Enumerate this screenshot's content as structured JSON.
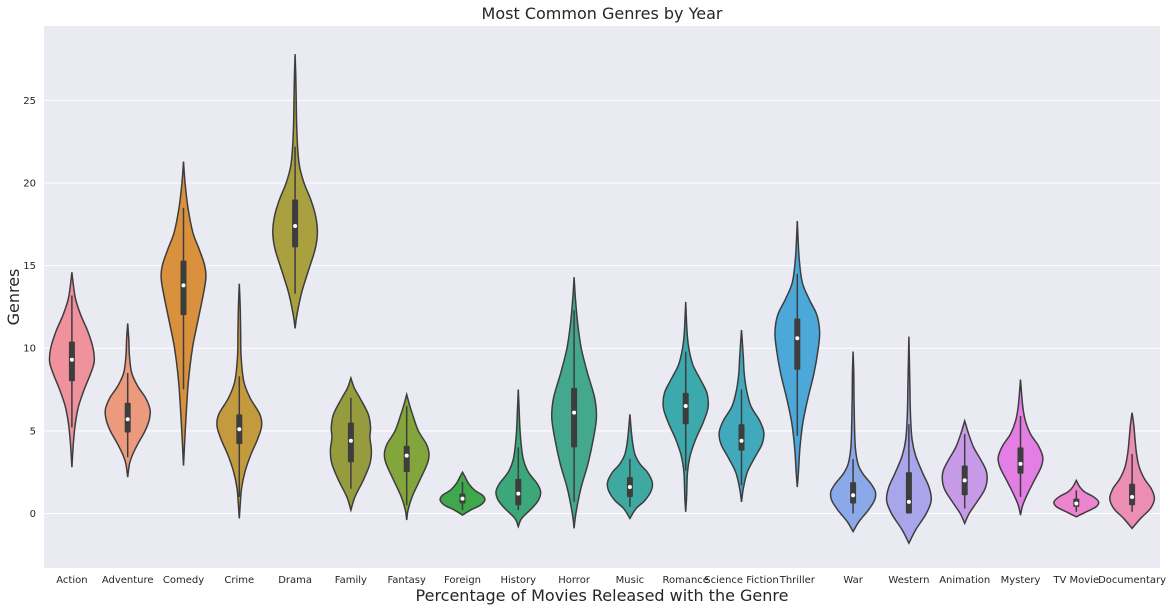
{
  "chart_data": {
    "type": "violin",
    "title": "Most Common Genres by Year",
    "xlabel": "Percentage of Movies Released with the Genre",
    "ylabel": "Genres",
    "ylim": [
      -3.3,
      29.5
    ],
    "yticks": [
      0,
      5,
      10,
      15,
      20,
      25
    ],
    "grid": true,
    "categories": [
      "Action",
      "Adventure",
      "Comedy",
      "Crime",
      "Drama",
      "Family",
      "Fantasy",
      "Foreign",
      "History",
      "Horror",
      "Music",
      "Romance",
      "Science Fiction",
      "Thriller",
      "War",
      "Western",
      "Animation",
      "Mystery",
      "TV Movie",
      "Documentary"
    ],
    "colors": [
      "#f0929d",
      "#eb9a7e",
      "#d9913d",
      "#c49a3f",
      "#a9a040",
      "#969c3d",
      "#82a63b",
      "#3fa84d",
      "#3ca779",
      "#44a88f",
      "#3ea9a0",
      "#3ca9ad",
      "#40aabc",
      "#4ba8d9",
      "#8ba8e8",
      "#a9a5ea",
      "#c79ae8",
      "#e37ee4",
      "#ec84ce",
      "#ec8db3"
    ],
    "violins": [
      {
        "min": 2.8,
        "max": 14.6,
        "q1": 8.0,
        "q3": 10.4,
        "median": 9.3,
        "wlo": 5.2,
        "whi": 13.2,
        "profile": [
          [
            2.8,
            0
          ],
          [
            3.5,
            0.03
          ],
          [
            4.5,
            0.08
          ],
          [
            5.5,
            0.16
          ],
          [
            6.5,
            0.3
          ],
          [
            7.5,
            0.55
          ],
          [
            8.5,
            0.85
          ],
          [
            9.2,
            1.0
          ],
          [
            10,
            0.95
          ],
          [
            11,
            0.72
          ],
          [
            12,
            0.4
          ],
          [
            13,
            0.16
          ],
          [
            14,
            0.05
          ],
          [
            14.6,
            0
          ]
        ]
      },
      {
        "min": 2.2,
        "max": 11.5,
        "q1": 4.9,
        "q3": 6.7,
        "median": 5.7,
        "wlo": 3.4,
        "whi": 8.5,
        "profile": [
          [
            2.2,
            0
          ],
          [
            3,
            0.08
          ],
          [
            3.5,
            0.2
          ],
          [
            4.2,
            0.45
          ],
          [
            5,
            0.78
          ],
          [
            5.7,
            0.97
          ],
          [
            6.3,
            1.0
          ],
          [
            7,
            0.8
          ],
          [
            7.7,
            0.45
          ],
          [
            8.5,
            0.18
          ],
          [
            9.5,
            0.08
          ],
          [
            10.5,
            0.05
          ],
          [
            11.5,
            0
          ]
        ]
      },
      {
        "min": 2.9,
        "max": 21.3,
        "q1": 12.0,
        "q3": 15.3,
        "median": 13.8,
        "wlo": 7.5,
        "whi": 18.5,
        "profile": [
          [
            2.9,
            0
          ],
          [
            4,
            0.04
          ],
          [
            6,
            0.12
          ],
          [
            8,
            0.22
          ],
          [
            10,
            0.4
          ],
          [
            11.5,
            0.62
          ],
          [
            13,
            0.85
          ],
          [
            14.2,
            1.0
          ],
          [
            15,
            0.95
          ],
          [
            16,
            0.7
          ],
          [
            17,
            0.42
          ],
          [
            18.5,
            0.2
          ],
          [
            20,
            0.07
          ],
          [
            21.3,
            0
          ]
        ]
      },
      {
        "min": -0.3,
        "max": 13.9,
        "q1": 4.2,
        "q3": 6.0,
        "median": 5.1,
        "wlo": 1.0,
        "whi": 8.3,
        "profile": [
          [
            -0.3,
            0
          ],
          [
            0.5,
            0.04
          ],
          [
            1.5,
            0.1
          ],
          [
            2.5,
            0.25
          ],
          [
            3.5,
            0.5
          ],
          [
            4.5,
            0.82
          ],
          [
            5.3,
            1.0
          ],
          [
            6,
            0.92
          ],
          [
            7,
            0.48
          ],
          [
            8,
            0.2
          ],
          [
            9.5,
            0.08
          ],
          [
            11,
            0.06
          ],
          [
            12.5,
            0.04
          ],
          [
            13.9,
            0
          ]
        ]
      },
      {
        "min": 11.2,
        "max": 27.8,
        "q1": 16.1,
        "q3": 19.0,
        "median": 17.4,
        "wlo": 13.3,
        "whi": 22.2,
        "profile": [
          [
            11.2,
            0
          ],
          [
            12,
            0.08
          ],
          [
            13.3,
            0.28
          ],
          [
            14.5,
            0.55
          ],
          [
            16,
            0.9
          ],
          [
            17,
            1.0
          ],
          [
            18,
            0.92
          ],
          [
            19,
            0.7
          ],
          [
            20,
            0.4
          ],
          [
            21,
            0.2
          ],
          [
            22,
            0.12
          ],
          [
            23.5,
            0.07
          ],
          [
            25,
            0.05
          ],
          [
            26.5,
            0.03
          ],
          [
            27.8,
            0
          ]
        ]
      },
      {
        "min": 0.2,
        "max": 8.2,
        "q1": 3.1,
        "q3": 5.5,
        "median": 4.4,
        "wlo": 1.5,
        "whi": 7.0,
        "profile": [
          [
            0.2,
            0
          ],
          [
            1,
            0.18
          ],
          [
            2,
            0.55
          ],
          [
            3,
            0.85
          ],
          [
            3.8,
            0.92
          ],
          [
            4.6,
            0.85
          ],
          [
            5.2,
            0.88
          ],
          [
            6,
            0.78
          ],
          [
            7,
            0.4
          ],
          [
            7.6,
            0.15
          ],
          [
            8.2,
            0
          ]
        ]
      },
      {
        "min": -0.4,
        "max": 7.2,
        "q1": 2.5,
        "q3": 4.1,
        "median": 3.5,
        "wlo": 0.5,
        "whi": 6.5,
        "profile": [
          [
            -0.4,
            0
          ],
          [
            0.2,
            0.06
          ],
          [
            1,
            0.24
          ],
          [
            2,
            0.58
          ],
          [
            3,
            0.92
          ],
          [
            3.6,
            1.0
          ],
          [
            4.2,
            0.88
          ],
          [
            5,
            0.52
          ],
          [
            6,
            0.26
          ],
          [
            6.6,
            0.12
          ],
          [
            7.2,
            0
          ]
        ]
      },
      {
        "min": -0.1,
        "max": 2.5,
        "q1": 0.6,
        "q3": 1.2,
        "median": 0.9,
        "wlo": 0.2,
        "whi": 1.9,
        "profile": [
          [
            -0.1,
            0
          ],
          [
            0.2,
            0.35
          ],
          [
            0.5,
            0.8
          ],
          [
            0.8,
            1.0
          ],
          [
            1.1,
            0.9
          ],
          [
            1.4,
            0.55
          ],
          [
            1.8,
            0.28
          ],
          [
            2.2,
            0.12
          ],
          [
            2.5,
            0
          ]
        ]
      },
      {
        "min": -0.8,
        "max": 7.5,
        "q1": 0.5,
        "q3": 2.1,
        "median": 1.2,
        "wlo": 0.2,
        "whi": 4.0,
        "profile": [
          [
            -0.8,
            0
          ],
          [
            -0.3,
            0.15
          ],
          [
            0.3,
            0.6
          ],
          [
            0.8,
            0.9
          ],
          [
            1.3,
            1.0
          ],
          [
            1.8,
            0.85
          ],
          [
            2.5,
            0.45
          ],
          [
            3.3,
            0.22
          ],
          [
            4.3,
            0.12
          ],
          [
            5.2,
            0.07
          ],
          [
            6.2,
            0.04
          ],
          [
            7.5,
            0
          ]
        ]
      },
      {
        "min": -0.9,
        "max": 14.3,
        "q1": 4.0,
        "q3": 7.6,
        "median": 6.1,
        "wlo": 0.7,
        "whi": 12.3,
        "profile": [
          [
            -0.9,
            0
          ],
          [
            0,
            0.08
          ],
          [
            1.5,
            0.3
          ],
          [
            3,
            0.62
          ],
          [
            4.5,
            0.86
          ],
          [
            5.8,
            1.0
          ],
          [
            7,
            0.92
          ],
          [
            8.5,
            0.6
          ],
          [
            10,
            0.32
          ],
          [
            11.5,
            0.16
          ],
          [
            13,
            0.06
          ],
          [
            14.3,
            0
          ]
        ]
      },
      {
        "min": -0.3,
        "max": 6.0,
        "q1": 1.0,
        "q3": 2.2,
        "median": 1.6,
        "wlo": 0.4,
        "whi": 3.3,
        "profile": [
          [
            -0.3,
            0
          ],
          [
            0.3,
            0.28
          ],
          [
            0.8,
            0.68
          ],
          [
            1.4,
            0.96
          ],
          [
            1.9,
            1.0
          ],
          [
            2.5,
            0.78
          ],
          [
            3,
            0.45
          ],
          [
            3.6,
            0.22
          ],
          [
            4.5,
            0.1
          ],
          [
            6,
            0
          ]
        ]
      },
      {
        "min": 0.1,
        "max": 12.8,
        "q1": 5.4,
        "q3": 7.3,
        "median": 6.5,
        "wlo": 2.6,
        "whi": 9.8,
        "profile": [
          [
            0.1,
            0
          ],
          [
            1,
            0.04
          ],
          [
            2.5,
            0.08
          ],
          [
            3.5,
            0.2
          ],
          [
            4.5,
            0.45
          ],
          [
            5.5,
            0.78
          ],
          [
            6.4,
            1.0
          ],
          [
            7.3,
            0.95
          ],
          [
            8.2,
            0.62
          ],
          [
            9,
            0.32
          ],
          [
            10,
            0.14
          ],
          [
            11,
            0.06
          ],
          [
            12.8,
            0
          ]
        ]
      },
      {
        "min": 0.7,
        "max": 11.1,
        "q1": 3.8,
        "q3": 5.4,
        "median": 4.4,
        "wlo": 1.7,
        "whi": 7.5,
        "profile": [
          [
            0.7,
            0
          ],
          [
            1.5,
            0.08
          ],
          [
            2.5,
            0.26
          ],
          [
            3.4,
            0.6
          ],
          [
            4.2,
            0.92
          ],
          [
            4.9,
            1.0
          ],
          [
            5.6,
            0.82
          ],
          [
            6.5,
            0.42
          ],
          [
            7.5,
            0.22
          ],
          [
            8.5,
            0.12
          ],
          [
            9.5,
            0.08
          ],
          [
            11.1,
            0
          ]
        ]
      },
      {
        "min": 1.6,
        "max": 17.7,
        "q1": 8.7,
        "q3": 11.8,
        "median": 10.6,
        "wlo": 4.7,
        "whi": 14.5,
        "profile": [
          [
            1.6,
            0
          ],
          [
            2.5,
            0.05
          ],
          [
            4,
            0.12
          ],
          [
            5.5,
            0.25
          ],
          [
            7,
            0.48
          ],
          [
            8.5,
            0.75
          ],
          [
            10,
            0.94
          ],
          [
            11,
            1.0
          ],
          [
            12,
            0.88
          ],
          [
            13,
            0.52
          ],
          [
            14,
            0.22
          ],
          [
            15.5,
            0.08
          ],
          [
            17.7,
            0
          ]
        ]
      },
      {
        "min": -1.1,
        "max": 9.8,
        "q1": 0.6,
        "q3": 1.9,
        "median": 1.1,
        "wlo": 0.0,
        "whi": 3.3,
        "profile": [
          [
            -1.1,
            0
          ],
          [
            -0.5,
            0.26
          ],
          [
            0.2,
            0.68
          ],
          [
            0.8,
            0.96
          ],
          [
            1.3,
            1.0
          ],
          [
            1.8,
            0.8
          ],
          [
            2.4,
            0.44
          ],
          [
            3,
            0.22
          ],
          [
            4,
            0.1
          ],
          [
            5.5,
            0.06
          ],
          [
            7,
            0.04
          ],
          [
            8.5,
            0.03
          ],
          [
            9.8,
            0
          ]
        ]
      },
      {
        "min": -1.8,
        "max": 10.7,
        "q1": 0.0,
        "q3": 2.5,
        "median": 0.7,
        "wlo": 0.0,
        "whi": 5.4,
        "profile": [
          [
            -1.8,
            0
          ],
          [
            -1,
            0.3
          ],
          [
            0,
            0.78
          ],
          [
            0.8,
            1.0
          ],
          [
            1.6,
            0.9
          ],
          [
            2.5,
            0.6
          ],
          [
            3.5,
            0.3
          ],
          [
            4.5,
            0.14
          ],
          [
            6,
            0.07
          ],
          [
            8,
            0.04
          ],
          [
            10.7,
            0
          ]
        ]
      },
      {
        "min": -0.6,
        "max": 5.6,
        "q1": 1.1,
        "q3": 2.9,
        "median": 2.0,
        "wlo": 0.3,
        "whi": 4.8,
        "profile": [
          [
            -0.6,
            0
          ],
          [
            0,
            0.2
          ],
          [
            0.7,
            0.55
          ],
          [
            1.4,
            0.88
          ],
          [
            2,
            1.0
          ],
          [
            2.6,
            0.96
          ],
          [
            3.3,
            0.7
          ],
          [
            4,
            0.4
          ],
          [
            4.8,
            0.18
          ],
          [
            5.6,
            0
          ]
        ]
      },
      {
        "min": -0.1,
        "max": 8.1,
        "q1": 2.4,
        "q3": 4.0,
        "median": 3.0,
        "wlo": 1.0,
        "whi": 5.9,
        "profile": [
          [
            -0.1,
            0
          ],
          [
            0.5,
            0.1
          ],
          [
            1.2,
            0.32
          ],
          [
            2,
            0.62
          ],
          [
            2.8,
            0.92
          ],
          [
            3.4,
            1.0
          ],
          [
            4.1,
            0.8
          ],
          [
            4.8,
            0.45
          ],
          [
            5.6,
            0.22
          ],
          [
            6.5,
            0.1
          ],
          [
            8.1,
            0
          ]
        ]
      },
      {
        "min": -0.2,
        "max": 2.0,
        "q1": 0.4,
        "q3": 0.9,
        "median": 0.6,
        "wlo": 0.1,
        "whi": 1.4,
        "profile": [
          [
            -0.2,
            0
          ],
          [
            0.1,
            0.45
          ],
          [
            0.4,
            0.88
          ],
          [
            0.7,
            1.0
          ],
          [
            1.0,
            0.78
          ],
          [
            1.3,
            0.38
          ],
          [
            1.6,
            0.16
          ],
          [
            2.0,
            0
          ]
        ]
      },
      {
        "min": -0.9,
        "max": 6.1,
        "q1": 0.5,
        "q3": 1.8,
        "median": 1.0,
        "wlo": 0.1,
        "whi": 3.6,
        "profile": [
          [
            -0.9,
            0
          ],
          [
            -0.3,
            0.38
          ],
          [
            0.3,
            0.82
          ],
          [
            0.9,
            1.0
          ],
          [
            1.5,
            0.86
          ],
          [
            2.1,
            0.55
          ],
          [
            2.8,
            0.32
          ],
          [
            3.6,
            0.2
          ],
          [
            4.5,
            0.13
          ],
          [
            5.3,
            0.08
          ],
          [
            6.1,
            0
          ]
        ]
      }
    ]
  }
}
